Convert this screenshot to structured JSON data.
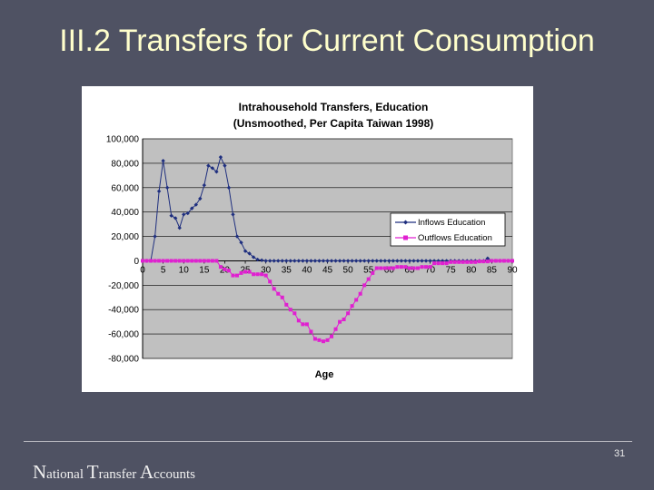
{
  "slide": {
    "title": "III.2 Transfers for Current Consumption",
    "footer_words": [
      {
        "cap": "N",
        "rest": "ational"
      },
      {
        "cap": "T",
        "rest": "ransfer"
      },
      {
        "cap": "A",
        "rest": "ccounts"
      }
    ],
    "page_number": "31"
  },
  "chart_data": {
    "type": "line",
    "title": "Intrahousehold Transfers, Education",
    "subtitle": "(Unsmoothed, Per Capita Taiwan 1998)",
    "xlabel": "Age",
    "ylabel": "",
    "xlim": [
      0,
      90
    ],
    "ylim": [
      -80000,
      100000
    ],
    "x_ticks": [
      0,
      5,
      10,
      15,
      20,
      25,
      30,
      35,
      40,
      45,
      50,
      55,
      60,
      65,
      70,
      75,
      80,
      85,
      90
    ],
    "y_ticks": [
      {
        "value": 100000,
        "label": "100,000"
      },
      {
        "value": 80000,
        "label": "80,000"
      },
      {
        "value": 60000,
        "label": "60,000"
      },
      {
        "value": 40000,
        "label": "40,000"
      },
      {
        "value": 20000,
        "label": "20,000"
      },
      {
        "value": 0,
        "label": "0"
      },
      {
        "value": -20000,
        "label": "-20,000"
      },
      {
        "value": -40000,
        "label": "-40,000"
      },
      {
        "value": -60000,
        "label": "-60,000"
      },
      {
        "value": -80000,
        "label": "-80,000"
      }
    ],
    "grid": "horizontal",
    "legend_position": "right",
    "plot_background": "#c0c0c0",
    "series": [
      {
        "name": "Inflows Education",
        "color": "#1f2f7f",
        "marker": "diamond",
        "x": [
          0,
          1,
          2,
          3,
          4,
          5,
          6,
          7,
          8,
          9,
          10,
          11,
          12,
          13,
          14,
          15,
          16,
          17,
          18,
          19,
          20,
          21,
          22,
          23,
          24,
          25,
          26,
          27,
          28,
          29,
          30,
          31,
          32,
          33,
          34,
          35,
          36,
          37,
          38,
          39,
          40,
          41,
          42,
          43,
          44,
          45,
          46,
          47,
          48,
          49,
          50,
          51,
          52,
          53,
          54,
          55,
          56,
          57,
          58,
          59,
          60,
          61,
          62,
          63,
          64,
          65,
          66,
          67,
          68,
          69,
          70,
          71,
          72,
          73,
          74,
          75,
          76,
          77,
          78,
          79,
          80,
          81,
          82,
          83,
          84,
          85,
          86,
          87,
          88,
          89,
          90
        ],
        "values": [
          0,
          0,
          0,
          20000,
          57000,
          82000,
          60000,
          37000,
          35000,
          27000,
          38000,
          39000,
          43000,
          46000,
          51000,
          62000,
          78000,
          76000,
          73000,
          85000,
          78000,
          60000,
          38000,
          20000,
          15000,
          8000,
          6000,
          3000,
          1000,
          500,
          0,
          0,
          0,
          0,
          0,
          0,
          0,
          0,
          0,
          0,
          0,
          0,
          0,
          0,
          0,
          0,
          0,
          0,
          0,
          0,
          0,
          0,
          0,
          0,
          0,
          0,
          0,
          0,
          0,
          0,
          0,
          0,
          0,
          0,
          0,
          0,
          0,
          0,
          0,
          0,
          0,
          0,
          0,
          0,
          0,
          0,
          0,
          0,
          0,
          0,
          0,
          0,
          0,
          0,
          2000,
          0,
          0,
          0,
          0,
          0,
          0
        ]
      },
      {
        "name": "Outflows Education",
        "color": "#e020d0",
        "marker": "square",
        "x": [
          0,
          1,
          2,
          3,
          4,
          5,
          6,
          7,
          8,
          9,
          10,
          11,
          12,
          13,
          14,
          15,
          16,
          17,
          18,
          19,
          20,
          21,
          22,
          23,
          24,
          25,
          26,
          27,
          28,
          29,
          30,
          31,
          32,
          33,
          34,
          35,
          36,
          37,
          38,
          39,
          40,
          41,
          42,
          43,
          44,
          45,
          46,
          47,
          48,
          49,
          50,
          51,
          52,
          53,
          54,
          55,
          56,
          57,
          58,
          59,
          60,
          61,
          62,
          63,
          64,
          65,
          66,
          67,
          68,
          69,
          70,
          71,
          72,
          73,
          74,
          75,
          76,
          77,
          78,
          79,
          80,
          81,
          82,
          83,
          84,
          85,
          86,
          87,
          88,
          89,
          90
        ],
        "values": [
          0,
          0,
          0,
          0,
          0,
          0,
          0,
          0,
          0,
          0,
          0,
          0,
          0,
          0,
          0,
          0,
          0,
          0,
          0,
          -5000,
          -7000,
          -8000,
          -12000,
          -12000,
          -10000,
          -9000,
          -9000,
          -11000,
          -11000,
          -11000,
          -12000,
          -17000,
          -23000,
          -27000,
          -30000,
          -36000,
          -40000,
          -43000,
          -49000,
          -52000,
          -52000,
          -58000,
          -64000,
          -65000,
          -66000,
          -65000,
          -62000,
          -56000,
          -50000,
          -48000,
          -43000,
          -37000,
          -32000,
          -27000,
          -20000,
          -15000,
          -10000,
          -6000,
          -6000,
          -6000,
          -6000,
          -6000,
          -5000,
          -5000,
          -5000,
          -6000,
          -6000,
          -6000,
          -5000,
          -5000,
          -5000,
          -2000,
          -2000,
          -2000,
          -2000,
          -1000,
          -1000,
          -1000,
          -1000,
          -1000,
          -1000,
          -1000,
          -500,
          -500,
          -500,
          0,
          0,
          0,
          0,
          0,
          0
        ]
      }
    ]
  }
}
